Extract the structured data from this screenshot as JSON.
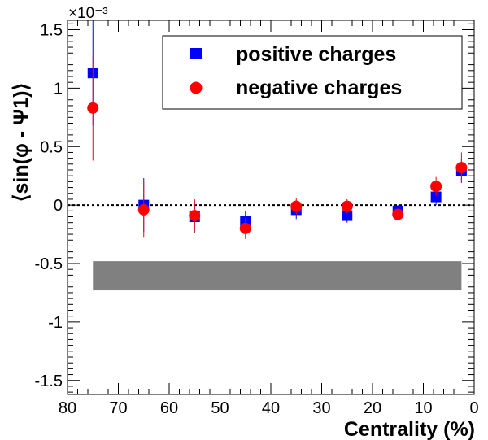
{
  "chart_data": {
    "type": "scatter",
    "xlabel": "Centrality (%)",
    "ylabel": "⟨sin(φ - Ψ1)⟩",
    "y_multiplier": "×10⁻³",
    "xlim": [
      80,
      0
    ],
    "ylim": [
      -1.62,
      1.58
    ],
    "x_reversed": true,
    "x_ticks": [
      80,
      70,
      60,
      50,
      40,
      30,
      20,
      10,
      0
    ],
    "x_tick_labels": [
      "80",
      "70",
      "60",
      "50",
      "40",
      "30",
      "20",
      "10",
      "0"
    ],
    "y_ticks": [
      -1.5,
      -1,
      -0.5,
      0,
      0.5,
      1,
      1.5
    ],
    "y_tick_labels": [
      "-1.5",
      "-1",
      "-0.5",
      "0",
      "0.5",
      "1",
      "1.5"
    ],
    "zero_line": "dotted",
    "legend_position": "top-right",
    "series": [
      {
        "name": "positive charges",
        "marker": "square",
        "color": "#0000ff",
        "x": [
          75,
          65,
          55,
          45,
          35,
          25,
          15,
          7.5,
          2.5
        ],
        "y": [
          1.13,
          0.0,
          -0.1,
          -0.14,
          -0.04,
          -0.09,
          -0.05,
          0.07,
          0.29
        ],
        "err": [
          0.45,
          0.23,
          0.14,
          0.09,
          0.08,
          0.06,
          0.05,
          0.07,
          0.1
        ]
      },
      {
        "name": "negative charges",
        "marker": "circle",
        "color": "#ff0000",
        "x": [
          75,
          65,
          55,
          45,
          35,
          25,
          15,
          7.5,
          2.5
        ],
        "y": [
          0.83,
          -0.04,
          -0.09,
          -0.2,
          -0.01,
          -0.01,
          -0.08,
          0.16,
          0.32
        ],
        "err": [
          0.45,
          0.24,
          0.14,
          0.09,
          0.07,
          0.06,
          0.05,
          0.08,
          0.13
        ]
      }
    ],
    "band": {
      "x_range": [
        75,
        2.5
      ],
      "y_range": [
        -0.73,
        -0.48
      ],
      "color": "#808080"
    }
  }
}
